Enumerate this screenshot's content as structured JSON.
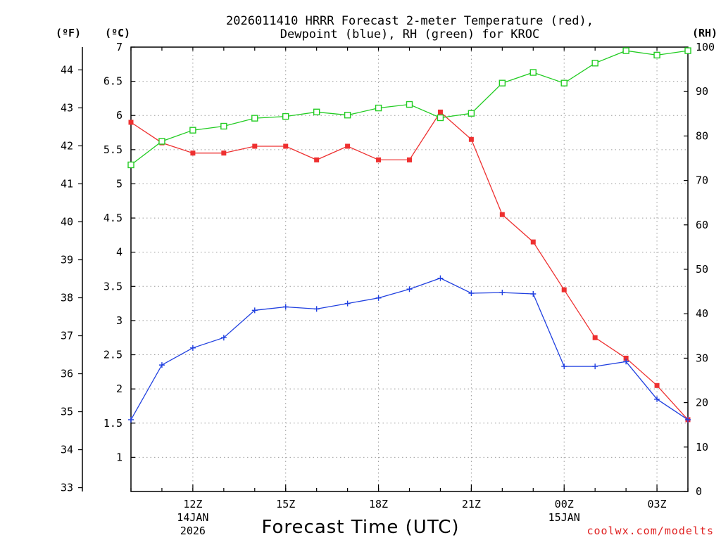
{
  "chart_data": {
    "type": "line",
    "title_line1": "2026011410 HRRR Forecast 2-meter Temperature (red),",
    "title_line2": "Dewpoint (blue), RH (green) for KROC",
    "units": {
      "fahrenheit": "(ºF)",
      "celsius": "(ºC)",
      "rh": "(RH)"
    },
    "xlabel": "Forecast Time (UTC)",
    "credit": "coolwx.com/modelts",
    "x_hours": [
      10,
      11,
      12,
      13,
      14,
      15,
      16,
      17,
      18,
      19,
      20,
      21,
      22,
      23,
      24,
      25,
      26,
      27,
      28
    ],
    "x_ticks": [
      {
        "hour": 12,
        "label": "12Z",
        "sub1": "14JAN",
        "sub2": "2026"
      },
      {
        "hour": 15,
        "label": "15Z",
        "sub1": "",
        "sub2": ""
      },
      {
        "hour": 18,
        "label": "18Z",
        "sub1": "",
        "sub2": ""
      },
      {
        "hour": 21,
        "label": "21Z",
        "sub1": "",
        "sub2": ""
      },
      {
        "hour": 24,
        "label": "00Z",
        "sub1": "15JAN",
        "sub2": ""
      },
      {
        "hour": 27,
        "label": "03Z",
        "sub1": "",
        "sub2": ""
      }
    ],
    "xlim": [
      10,
      28
    ],
    "celsius_axis": {
      "min": 0.5,
      "max": 7.0,
      "ticks": [
        1,
        1.5,
        2,
        2.5,
        3,
        3.5,
        4,
        4.5,
        5,
        5.5,
        6,
        6.5,
        7
      ]
    },
    "fahrenheit_axis": {
      "min": 32.9,
      "max": 44.6,
      "ticks": [
        33,
        34,
        35,
        36,
        37,
        38,
        39,
        40,
        41,
        42,
        43,
        44
      ]
    },
    "rh_axis": {
      "min": 0,
      "max": 100,
      "ticks": [
        0,
        10,
        20,
        30,
        40,
        50,
        60,
        70,
        80,
        90,
        100
      ]
    },
    "series": [
      {
        "name": "Temperature",
        "color": "#ee3030",
        "axis": "celsius",
        "marker": "filled-square",
        "values": [
          5.9,
          5.6,
          5.45,
          5.45,
          5.55,
          5.55,
          5.35,
          5.55,
          5.35,
          5.35,
          6.05,
          5.65,
          4.55,
          4.15,
          3.45,
          2.75,
          2.45,
          2.05,
          1.55
        ]
      },
      {
        "name": "Dewpoint",
        "color": "#2040e0",
        "axis": "celsius",
        "marker": "plus",
        "values": [
          1.55,
          2.35,
          2.6,
          2.75,
          3.15,
          3.2,
          3.17,
          3.25,
          3.33,
          3.46,
          3.62,
          3.4,
          3.41,
          3.39,
          2.33,
          2.33,
          2.4,
          1.85,
          1.55
        ]
      },
      {
        "name": "RH",
        "color": "#22cc22",
        "axis": "rh",
        "marker": "open-square",
        "values": [
          73.5,
          78.8,
          81.3,
          82.2,
          84.0,
          84.4,
          85.4,
          84.7,
          86.3,
          87.1,
          84.1,
          85.1,
          91.9,
          94.3,
          91.9,
          96.4,
          99.2,
          98.2,
          99.2
        ]
      }
    ]
  }
}
